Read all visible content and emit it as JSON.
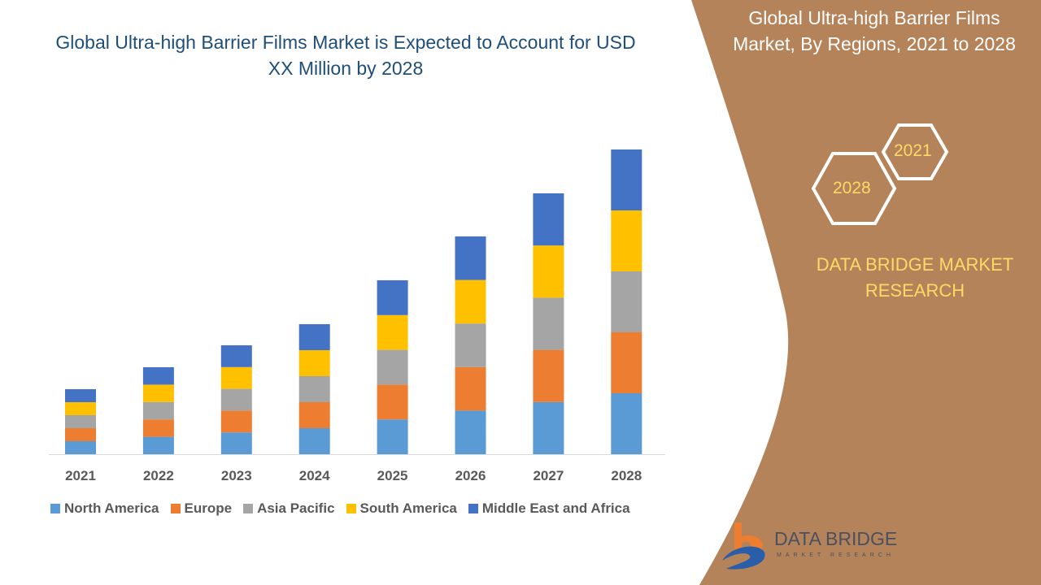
{
  "title": "Global Ultra-high Barrier Films Market is Expected to Account for USD XX Million by 2028",
  "side_panel": {
    "title": "Global Ultra-high Barrier Films Market, By Regions, 2021 to 2028",
    "hex_labels": [
      "2021",
      "2028"
    ],
    "brand": "DATA BRIDGE MARKET RESEARCH",
    "logo_text": "DATA BRIDGE",
    "logo_sub": "MARKET RESEARCH",
    "panel_color": "#b5835a"
  },
  "chart_data": {
    "type": "bar",
    "stacked": true,
    "categories": [
      "2021",
      "2022",
      "2023",
      "2024",
      "2025",
      "2026",
      "2027",
      "2028"
    ],
    "series": [
      {
        "name": "North America",
        "color": "#5b9bd5",
        "values": [
          16,
          21.4,
          26.8,
          32,
          42.8,
          53.6,
          64.2,
          75
        ]
      },
      {
        "name": "Europe",
        "color": "#ed7d31",
        "values": [
          16,
          21.4,
          26.8,
          32,
          42.8,
          53.6,
          64.2,
          75
        ]
      },
      {
        "name": "Asia Pacific",
        "color": "#a5a5a5",
        "values": [
          16,
          21.4,
          26.8,
          32,
          42.8,
          53.6,
          64.2,
          75
        ]
      },
      {
        "name": "South America",
        "color": "#ffc000",
        "values": [
          16,
          21.4,
          26.8,
          32,
          42.8,
          53.6,
          64.2,
          75
        ]
      },
      {
        "name": "Middle East and Africa",
        "color": "#4472c4",
        "values": [
          16,
          21.4,
          26.8,
          32,
          42.8,
          53.6,
          64.2,
          75
        ]
      }
    ],
    "ylim": [
      0,
      400
    ],
    "y_axis_shown": false,
    "grid": false,
    "legend": "bottom"
  }
}
